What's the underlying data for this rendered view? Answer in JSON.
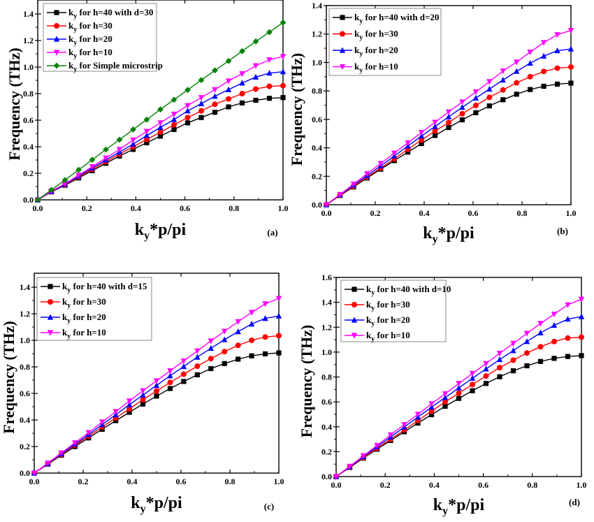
{
  "chart_data": [
    {
      "type": "line",
      "panel_label": "(a)",
      "xlabel": "k_y*p/pi",
      "xlabel_main": "k",
      "xlabel_sub": "y",
      "xlabel_rest": "*p/pi",
      "ylabel": "Frequency (THz)",
      "xlim": [
        0,
        1.0
      ],
      "ylim": [
        0,
        1.5
      ],
      "xticks": [
        "0.0",
        "0.2",
        "0.4",
        "0.6",
        "0.8",
        "1.0"
      ],
      "yticks": [
        "0.0",
        "0.2",
        "0.4",
        "0.6",
        "0.8",
        "1.0",
        "1.2",
        "1.4"
      ],
      "legend_position": "top-left",
      "x": [
        0,
        0.0556,
        0.1111,
        0.1667,
        0.2222,
        0.2778,
        0.3333,
        0.3889,
        0.4444,
        0.5,
        0.5556,
        0.6111,
        0.6667,
        0.7222,
        0.7778,
        0.8333,
        0.8889,
        0.9444,
        1.0
      ],
      "series": [
        {
          "name": "k_y for h=40 with d=30",
          "label_main": "k",
          "label_sub": "y",
          "label_rest": " for h=40 with d=30",
          "color": "#000000",
          "marker": "square",
          "values": [
            0,
            0.06,
            0.11,
            0.165,
            0.22,
            0.275,
            0.33,
            0.38,
            0.43,
            0.48,
            0.53,
            0.58,
            0.62,
            0.66,
            0.7,
            0.73,
            0.75,
            0.765,
            0.77
          ]
        },
        {
          "name": "k_y for h=30",
          "label_main": "k",
          "label_sub": "y",
          "label_rest": " for h=30",
          "color": "#ff0000",
          "marker": "circle",
          "values": [
            0,
            0.062,
            0.115,
            0.172,
            0.23,
            0.287,
            0.345,
            0.4,
            0.455,
            0.51,
            0.565,
            0.62,
            0.67,
            0.72,
            0.76,
            0.8,
            0.835,
            0.855,
            0.86
          ]
        },
        {
          "name": "k_y for h=20",
          "label_main": "k",
          "label_sub": "y",
          "label_rest": " for h=20",
          "color": "#0000ff",
          "marker": "triangle-up",
          "values": [
            0,
            0.063,
            0.118,
            0.178,
            0.24,
            0.3,
            0.36,
            0.42,
            0.485,
            0.545,
            0.605,
            0.67,
            0.725,
            0.78,
            0.83,
            0.88,
            0.925,
            0.955,
            0.965
          ]
        },
        {
          "name": "k_y for h=10",
          "label_main": "k",
          "label_sub": "y",
          "label_rest": " for h=10",
          "color": "#ff00ff",
          "marker": "triangle-down",
          "values": [
            0,
            0.065,
            0.122,
            0.185,
            0.25,
            0.315,
            0.38,
            0.45,
            0.515,
            0.58,
            0.645,
            0.71,
            0.77,
            0.83,
            0.895,
            0.95,
            1.01,
            1.055,
            1.08
          ]
        },
        {
          "name": "k_y for Simple microstrip",
          "label_main": "k",
          "label_sub": "y",
          "label_rest": " for Simple microstrip",
          "color": "#008000",
          "marker": "diamond",
          "values": [
            0,
            0.075,
            0.149,
            0.226,
            0.302,
            0.379,
            0.453,
            0.53,
            0.604,
            0.681,
            0.754,
            0.828,
            0.902,
            0.975,
            1.046,
            1.12,
            1.193,
            1.263,
            1.335
          ]
        }
      ]
    },
    {
      "type": "line",
      "panel_label": "(b)",
      "xlabel": "ky*p/pi",
      "xlabel_main": "k",
      "xlabel_sub": "y",
      "xlabel_rest": "*p/pi",
      "ylabel": "Frequency (THz)",
      "xlim": [
        0,
        1.0
      ],
      "ylim": [
        0,
        1.4
      ],
      "xticks": [
        "0.0",
        "0.2",
        "0.4",
        "0.6",
        "0.8",
        "1.0"
      ],
      "yticks": [
        "0.0",
        "0.2",
        "0.4",
        "0.6",
        "0.8",
        "1.0",
        "1.2",
        "1.4"
      ],
      "legend_position": "top-left",
      "x": [
        0,
        0.0556,
        0.1111,
        0.1667,
        0.2222,
        0.2778,
        0.3333,
        0.3889,
        0.4444,
        0.5,
        0.5556,
        0.6111,
        0.6667,
        0.7222,
        0.7778,
        0.8333,
        0.8889,
        0.9444,
        1.0
      ],
      "series": [
        {
          "name": "ky for h=40 with d=20",
          "label_main": "k",
          "label_sub": "y",
          "label_rest": " for h=40 with d=20",
          "color": "#000000",
          "marker": "square",
          "values": [
            0,
            0.065,
            0.125,
            0.188,
            0.25,
            0.31,
            0.37,
            0.43,
            0.487,
            0.543,
            0.597,
            0.647,
            0.695,
            0.738,
            0.777,
            0.81,
            0.833,
            0.848,
            0.855
          ]
        },
        {
          "name": "ky for h=30",
          "label_main": "k",
          "label_sub": "y",
          "label_rest": " for h=30",
          "color": "#ff0000",
          "marker": "circle",
          "values": [
            0,
            0.067,
            0.13,
            0.195,
            0.258,
            0.323,
            0.39,
            0.455,
            0.518,
            0.578,
            0.64,
            0.698,
            0.755,
            0.807,
            0.857,
            0.9,
            0.937,
            0.96,
            0.968
          ]
        },
        {
          "name": "ky for h=20",
          "label_main": "k",
          "label_sub": "y",
          "label_rest": " for h=20",
          "color": "#0000ff",
          "marker": "triangle-up",
          "values": [
            0,
            0.07,
            0.138,
            0.205,
            0.273,
            0.343,
            0.413,
            0.483,
            0.55,
            0.618,
            0.685,
            0.75,
            0.813,
            0.877,
            0.938,
            0.995,
            1.045,
            1.083,
            1.095
          ]
        },
        {
          "name": "ky for h=10",
          "label_main": "k",
          "label_sub": "y",
          "label_rest": " for h=10",
          "color": "#ff00ff",
          "marker": "triangle-down",
          "values": [
            0,
            0.072,
            0.145,
            0.218,
            0.29,
            0.363,
            0.435,
            0.508,
            0.58,
            0.653,
            0.723,
            0.793,
            0.865,
            0.94,
            1.003,
            1.073,
            1.14,
            1.195,
            1.225
          ]
        }
      ]
    },
    {
      "type": "line",
      "panel_label": "(c)",
      "xlabel": "ky*p/pi",
      "xlabel_main": "k",
      "xlabel_sub": "y",
      "xlabel_rest": "*p/pi",
      "ylabel": "Frequency (THz)",
      "xlim": [
        0,
        1.0
      ],
      "ylim": [
        0,
        1.5
      ],
      "xticks": [
        "0.0",
        "0.2",
        "0.4",
        "0.6",
        "0.8",
        "1.0"
      ],
      "yticks": [
        "0.0",
        "0.2",
        "0.4",
        "0.6",
        "0.8",
        "1.0",
        "1.2",
        "1.4"
      ],
      "legend_position": "top-left",
      "x": [
        0,
        0.0556,
        0.1111,
        0.1667,
        0.2222,
        0.2778,
        0.3333,
        0.3889,
        0.4444,
        0.5,
        0.5556,
        0.6111,
        0.6667,
        0.7222,
        0.7778,
        0.8333,
        0.8889,
        0.9444,
        1.0
      ],
      "series": [
        {
          "name": "ky for h=40 with d=15",
          "label_main": "k",
          "label_sub": "y",
          "label_rest": " for h=40 with d=15",
          "color": "#000000",
          "marker": "square",
          "values": [
            0,
            0.067,
            0.135,
            0.2,
            0.265,
            0.33,
            0.395,
            0.458,
            0.52,
            0.58,
            0.637,
            0.69,
            0.74,
            0.787,
            0.825,
            0.858,
            0.883,
            0.898,
            0.905
          ]
        },
        {
          "name": "ky for h=30",
          "label_main": "k",
          "label_sub": "y",
          "label_rest": " for h=30",
          "color": "#ff0000",
          "marker": "circle",
          "values": [
            0,
            0.07,
            0.14,
            0.21,
            0.278,
            0.347,
            0.415,
            0.483,
            0.553,
            0.618,
            0.683,
            0.745,
            0.805,
            0.862,
            0.915,
            0.962,
            1.0,
            1.025,
            1.035
          ]
        },
        {
          "name": "ky for h=20",
          "label_main": "k",
          "label_sub": "y",
          "label_rest": " for h=20",
          "color": "#0000ff",
          "marker": "triangle-up",
          "values": [
            0,
            0.072,
            0.145,
            0.218,
            0.29,
            0.365,
            0.44,
            0.515,
            0.588,
            0.66,
            0.733,
            0.803,
            0.873,
            0.94,
            1.005,
            1.065,
            1.123,
            1.165,
            1.183
          ]
        },
        {
          "name": "ky for h=10",
          "label_main": "k",
          "label_sub": "y",
          "label_rest": " for h=10",
          "color": "#ff00ff",
          "marker": "triangle-down",
          "values": [
            0,
            0.075,
            0.152,
            0.228,
            0.305,
            0.385,
            0.463,
            0.543,
            0.62,
            0.695,
            0.77,
            0.845,
            0.92,
            0.995,
            1.068,
            1.14,
            1.21,
            1.275,
            1.315
          ]
        }
      ]
    },
    {
      "type": "line",
      "panel_label": "(d)",
      "xlabel": "ky*p/pi",
      "xlabel_main": "k",
      "xlabel_sub": "y",
      "xlabel_rest": "*p/pi",
      "ylabel": "Frequency (THz)",
      "xlim": [
        0,
        1.0
      ],
      "ylim": [
        0,
        1.6
      ],
      "xticks": [
        "0.0",
        "0.2",
        "0.4",
        "0.6",
        "0.8",
        "1.0"
      ],
      "yticks": [
        "0.0",
        "0.2",
        "0.4",
        "0.6",
        "0.8",
        "1.0",
        "1.2",
        "1.4",
        "1.6"
      ],
      "legend_position": "top-left",
      "x": [
        0,
        0.0556,
        0.1111,
        0.1667,
        0.2222,
        0.2778,
        0.3333,
        0.3889,
        0.4444,
        0.5,
        0.5556,
        0.6111,
        0.6667,
        0.7222,
        0.7778,
        0.8333,
        0.8889,
        0.9444,
        1.0
      ],
      "series": [
        {
          "name": "ky for h=40 with d=10",
          "label_main": "k",
          "label_sub": "y",
          "label_rest": " for h=40 with d=10",
          "color": "#000000",
          "marker": "square",
          "values": [
            0,
            0.073,
            0.148,
            0.22,
            0.29,
            0.36,
            0.43,
            0.497,
            0.565,
            0.628,
            0.69,
            0.748,
            0.802,
            0.85,
            0.89,
            0.925,
            0.95,
            0.965,
            0.972
          ]
        },
        {
          "name": "ky for h=30",
          "label_main": "k",
          "label_sub": "y",
          "label_rest": " for h=30",
          "color": "#ff0000",
          "marker": "circle",
          "values": [
            0,
            0.075,
            0.152,
            0.228,
            0.3,
            0.375,
            0.45,
            0.525,
            0.6,
            0.67,
            0.74,
            0.808,
            0.875,
            0.935,
            0.993,
            1.043,
            1.085,
            1.113,
            1.12
          ]
        },
        {
          "name": "ky for h=20",
          "label_main": "k",
          "label_sub": "y",
          "label_rest": " for h=20",
          "color": "#0000ff",
          "marker": "triangle-up",
          "values": [
            0,
            0.078,
            0.16,
            0.24,
            0.318,
            0.398,
            0.478,
            0.558,
            0.635,
            0.712,
            0.79,
            0.865,
            0.94,
            1.012,
            1.085,
            1.155,
            1.215,
            1.265,
            1.285
          ]
        },
        {
          "name": "ky for h=10",
          "label_main": "k",
          "label_sub": "y",
          "label_rest": " for h=10",
          "color": "#ff00ff",
          "marker": "triangle-down",
          "values": [
            0,
            0.082,
            0.167,
            0.25,
            0.335,
            0.418,
            0.5,
            0.585,
            0.665,
            0.748,
            0.828,
            0.908,
            0.99,
            1.07,
            1.15,
            1.23,
            1.305,
            1.38,
            1.425
          ]
        }
      ]
    }
  ]
}
